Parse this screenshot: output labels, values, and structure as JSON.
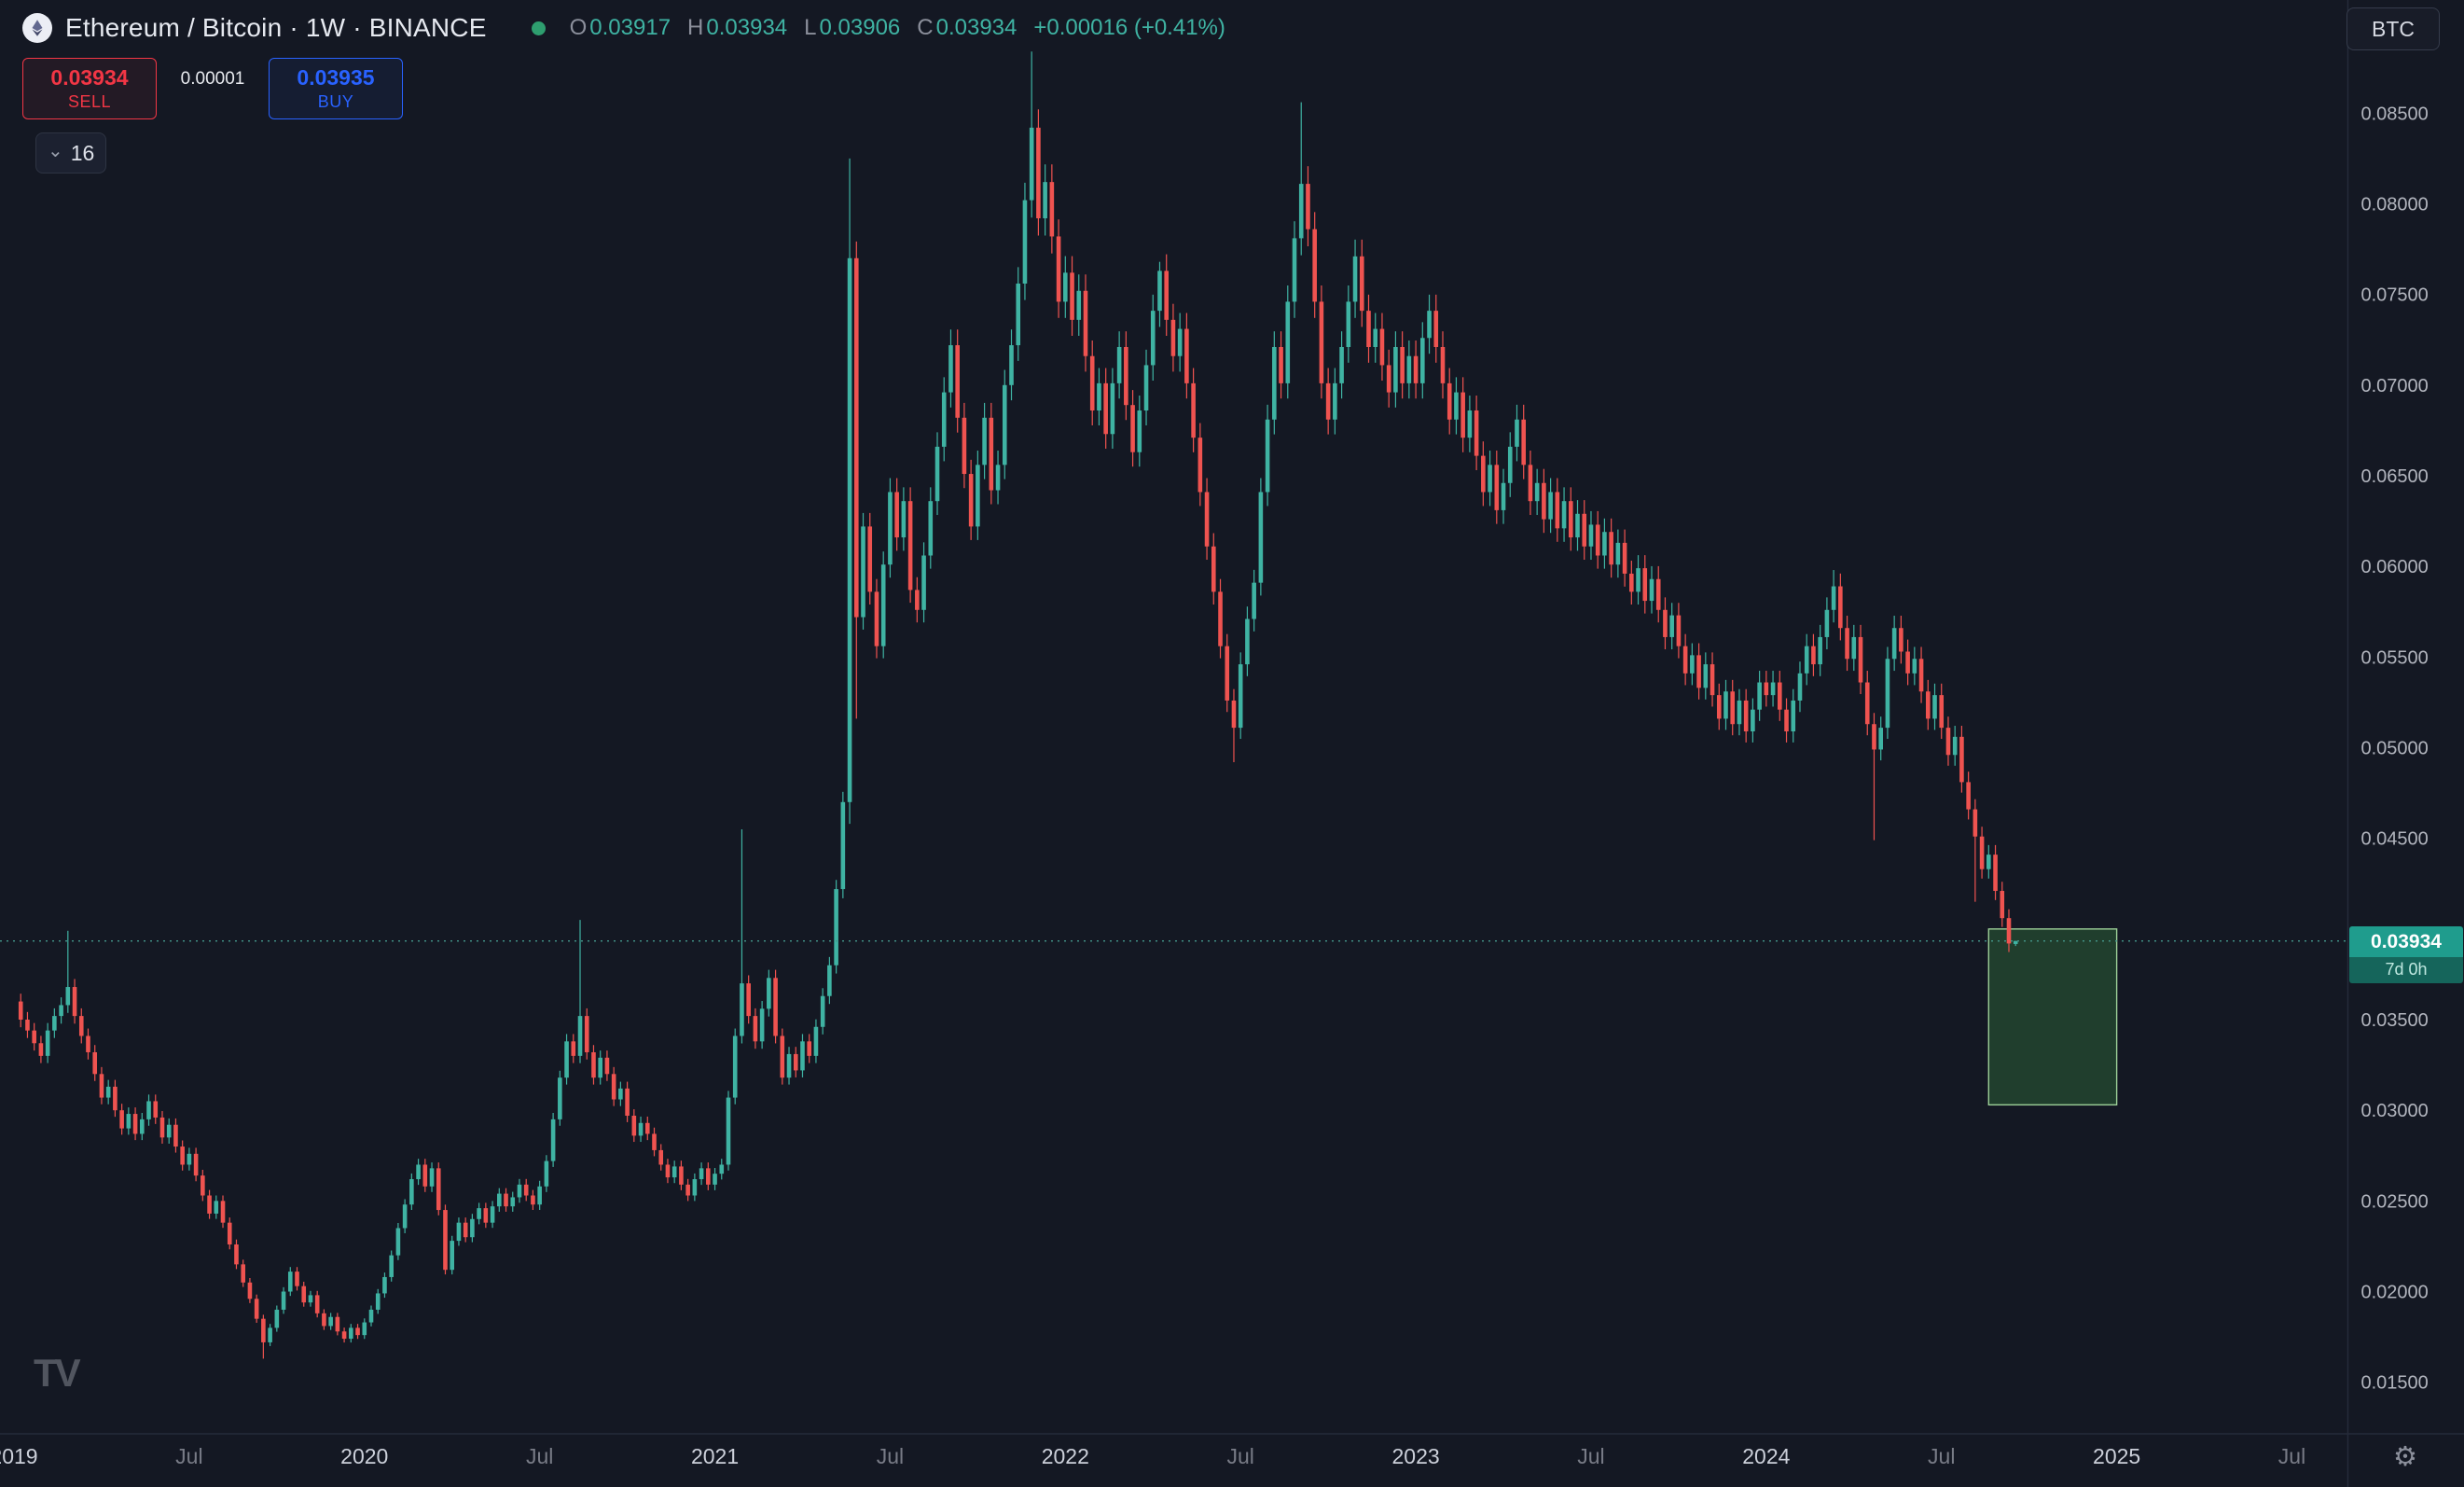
{
  "header": {
    "symbol_title": "Ethereum / Bitcoin · 1W · BINANCE",
    "ohlc": {
      "o_label": "O",
      "o": "0.03917",
      "h_label": "H",
      "h": "0.03934",
      "l_label": "L",
      "l": "0.03906",
      "c_label": "C",
      "c": "0.03934",
      "change": "+0.00016 (+0.41%)"
    },
    "currency_button": "BTC"
  },
  "trade_panel": {
    "sell_price": "0.03934",
    "sell_label": "SELL",
    "spread": "0.00001",
    "buy_price": "0.03935",
    "buy_label": "BUY"
  },
  "candles_selector": {
    "value": "16"
  },
  "price_scale": {
    "current_price": "0.03934",
    "countdown": "7d 0h"
  },
  "watermark": "TV",
  "colors": {
    "up": "#3fb3a3",
    "down": "#ef5350",
    "accent_red": "#f23645",
    "accent_blue": "#2962ff",
    "status_green": "#2e9e6f",
    "tag_bg": "#1f9c8d",
    "tag_dark": "#15655b",
    "dotted": "#44998c",
    "background": "#141823"
  },
  "chart_data": {
    "type": "candlestick",
    "title": "Ethereum / Bitcoin",
    "exchange": "BINANCE",
    "interval": "1W",
    "quote_currency": "BTC",
    "last_candle": {
      "o": 0.03917,
      "h": 0.03934,
      "l": 0.03906,
      "c": 0.03934,
      "change": 0.00016,
      "change_pct": 0.41
    },
    "current_price": 0.03934,
    "countdown": "7d 0h",
    "y_axis": {
      "ticks": [
        0.085,
        0.08,
        0.075,
        0.07,
        0.065,
        0.06,
        0.055,
        0.05,
        0.045,
        0.035,
        0.03,
        0.025,
        0.02,
        0.015
      ],
      "visible_range": [
        0.0122,
        0.0912
      ],
      "grid": false
    },
    "x_axis": {
      "start": "2019-01",
      "end": "2025-10",
      "labels": [
        {
          "text": "2019",
          "kind": "year"
        },
        {
          "text": "Jul",
          "kind": "month"
        },
        {
          "text": "2020",
          "kind": "year"
        },
        {
          "text": "Jul",
          "kind": "month"
        },
        {
          "text": "2021",
          "kind": "year"
        },
        {
          "text": "Jul",
          "kind": "month"
        },
        {
          "text": "2022",
          "kind": "year"
        },
        {
          "text": "Jul",
          "kind": "month"
        },
        {
          "text": "2023",
          "kind": "year"
        },
        {
          "text": "Jul",
          "kind": "month"
        },
        {
          "text": "2024",
          "kind": "year"
        },
        {
          "text": "Jul",
          "kind": "month"
        },
        {
          "text": "2025",
          "kind": "year"
        },
        {
          "text": "Jul",
          "kind": "month"
        }
      ]
    },
    "first_open": 0.036,
    "wick_fraction": 0.012,
    "weekly_closes": [
      0.035,
      0.0344,
      0.0337,
      0.033,
      0.0344,
      0.0352,
      0.0358,
      0.0368,
      0.0352,
      0.0341,
      0.0332,
      0.032,
      0.0307,
      0.0313,
      0.03,
      0.029,
      0.0298,
      0.0287,
      0.0295,
      0.0305,
      0.0296,
      0.0285,
      0.0292,
      0.028,
      0.027,
      0.0276,
      0.0264,
      0.0253,
      0.0243,
      0.025,
      0.0238,
      0.0226,
      0.0215,
      0.0205,
      0.0196,
      0.0185,
      0.0172,
      0.018,
      0.019,
      0.02,
      0.0211,
      0.0203,
      0.0194,
      0.0198,
      0.0188,
      0.0181,
      0.0186,
      0.0178,
      0.0174,
      0.018,
      0.0176,
      0.0183,
      0.019,
      0.0199,
      0.0208,
      0.022,
      0.0235,
      0.0248,
      0.0262,
      0.027,
      0.0258,
      0.0268,
      0.0245,
      0.0212,
      0.0228,
      0.0238,
      0.023,
      0.024,
      0.0246,
      0.0238,
      0.0247,
      0.0254,
      0.0247,
      0.0252,
      0.0259,
      0.0253,
      0.0248,
      0.0258,
      0.0272,
      0.0295,
      0.0318,
      0.0338,
      0.033,
      0.0352,
      0.0332,
      0.0318,
      0.0329,
      0.032,
      0.0306,
      0.0312,
      0.0297,
      0.0286,
      0.0293,
      0.0287,
      0.0278,
      0.027,
      0.0263,
      0.0269,
      0.0259,
      0.0253,
      0.0262,
      0.0268,
      0.0259,
      0.0265,
      0.027,
      0.0307,
      0.0341,
      0.037,
      0.0352,
      0.0338,
      0.0356,
      0.0373,
      0.0341,
      0.0318,
      0.0331,
      0.0322,
      0.0338,
      0.033,
      0.0346,
      0.0363,
      0.038,
      0.0422,
      0.047,
      0.077,
      0.0572,
      0.0622,
      0.0586,
      0.0556,
      0.0601,
      0.0641,
      0.0616,
      0.0636,
      0.0587,
      0.0576,
      0.0606,
      0.0636,
      0.0666,
      0.0696,
      0.0722,
      0.0682,
      0.0651,
      0.0622,
      0.0656,
      0.0682,
      0.0642,
      0.0656,
      0.07,
      0.0722,
      0.0756,
      0.0802,
      0.0842,
      0.0792,
      0.0812,
      0.0782,
      0.0746,
      0.0762,
      0.0736,
      0.0752,
      0.0716,
      0.0686,
      0.0701,
      0.0673,
      0.0701,
      0.0721,
      0.0689,
      0.0663,
      0.0686,
      0.0711,
      0.0741,
      0.0763,
      0.0736,
      0.0716,
      0.0731,
      0.0701,
      0.0671,
      0.0641,
      0.0611,
      0.0586,
      0.0556,
      0.0526,
      0.0511,
      0.0546,
      0.0571,
      0.0591,
      0.0641,
      0.0681,
      0.0721,
      0.0701,
      0.0746,
      0.0781,
      0.0811,
      0.0786,
      0.0746,
      0.0701,
      0.0681,
      0.0701,
      0.0721,
      0.0746,
      0.0771,
      0.0741,
      0.0721,
      0.0731,
      0.0711,
      0.0696,
      0.0721,
      0.0701,
      0.0716,
      0.0701,
      0.0726,
      0.0741,
      0.0721,
      0.0701,
      0.0681,
      0.0696,
      0.0671,
      0.0686,
      0.0661,
      0.0641,
      0.0656,
      0.0631,
      0.0646,
      0.0666,
      0.0681,
      0.0656,
      0.0636,
      0.0646,
      0.0626,
      0.0641,
      0.0621,
      0.0636,
      0.0616,
      0.0629,
      0.0611,
      0.0623,
      0.0606,
      0.0619,
      0.0601,
      0.0613,
      0.0596,
      0.0586,
      0.0599,
      0.0581,
      0.0593,
      0.0576,
      0.0561,
      0.0573,
      0.0556,
      0.0541,
      0.0551,
      0.0533,
      0.0546,
      0.0529,
      0.0516,
      0.0531,
      0.0513,
      0.0526,
      0.0509,
      0.0521,
      0.0536,
      0.0529,
      0.0536,
      0.0521,
      0.0509,
      0.0526,
      0.0541,
      0.0556,
      0.0546,
      0.0561,
      0.0576,
      0.0589,
      0.0566,
      0.0549,
      0.0561,
      0.0536,
      0.0513,
      0.0499,
      0.0511,
      0.0549,
      0.0566,
      0.0553,
      0.0541,
      0.0549,
      0.0531,
      0.0516,
      0.0529,
      0.0511,
      0.0496,
      0.0506,
      0.0481,
      0.0466,
      0.0451,
      0.0433,
      0.0441,
      0.0421,
      0.0406,
      0.0392,
      0.03934
    ],
    "wick_overrides": {
      "7": {
        "h": 0.0399
      },
      "36": {
        "l": 0.0163
      },
      "83": {
        "h": 0.0405
      },
      "107": {
        "h": 0.0455
      },
      "123": {
        "h": 0.0825,
        "l": 0.0458
      },
      "124": {
        "l": 0.0516
      },
      "150": {
        "h": 0.0884
      },
      "169": {
        "h": 0.0768
      },
      "180": {
        "l": 0.0492
      },
      "190": {
        "h": 0.0856
      },
      "269": {
        "h": 0.0598
      },
      "275": {
        "l": 0.0449
      },
      "290": {
        "l": 0.0415
      }
    },
    "position_box": {
      "from_index": 292,
      "to_index": 311,
      "top_price": 0.04,
      "bottom_price": 0.0303
    }
  }
}
